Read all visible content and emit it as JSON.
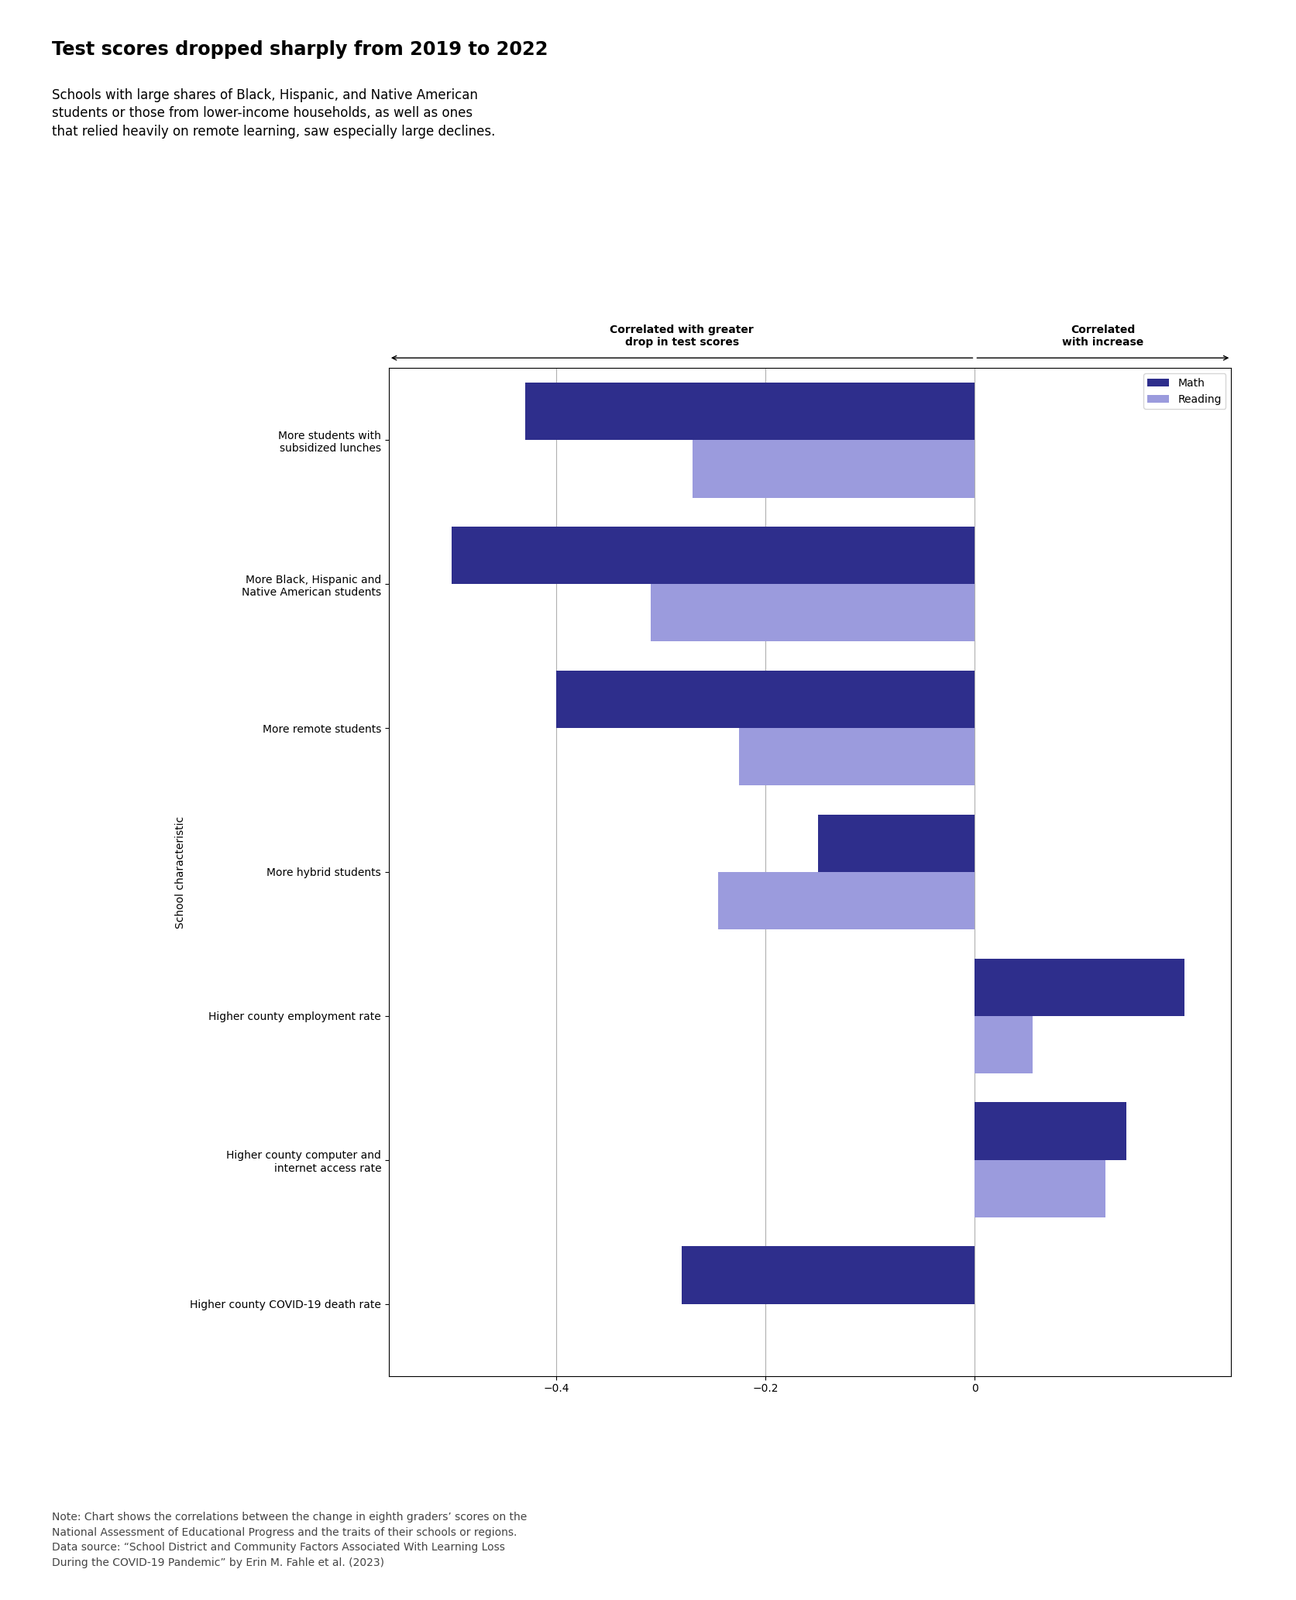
{
  "chart_data": {
    "type": "bar",
    "orientation": "horizontal",
    "title": "Test scores dropped sharply from 2019 to 2022",
    "subtitle": "Schools with large shares of Black, Hispanic, and Native American\nstudents or those from lower-income households, as well as ones\nthat relied heavily on remote learning, saw especially large declines.",
    "ylabel": "School characteristic",
    "categories": [
      "More students with\nsubsidized lunches",
      "More Black, Hispanic and\nNative American students",
      "More remote students",
      "More hybrid students",
      "Higher county employment rate",
      "Higher county computer and\ninternet access rate",
      "Higher county COVID-19 death rate"
    ],
    "series": [
      {
        "name": "Math",
        "color": "#2e2e8c",
        "values": [
          -0.43,
          -0.5,
          -0.4,
          -0.15,
          0.2,
          0.145,
          -0.28
        ]
      },
      {
        "name": "Reading",
        "color": "#9b9bdd",
        "values": [
          -0.27,
          -0.31,
          -0.225,
          -0.245,
          0.055,
          0.125,
          null
        ]
      }
    ],
    "xlim": [
      -0.56,
      0.245
    ],
    "xticks": [
      {
        "value": -0.4,
        "label": "−0.4"
      },
      {
        "value": -0.2,
        "label": "−0.2"
      },
      0
    ],
    "grid": true,
    "legend": "upper right",
    "annotations": [
      "Correlated with greater\ndrop in test scores",
      "Correlated\nwith increase"
    ],
    "note": "Note: Chart shows the correlations between the change in eighth graders’ scores on the\nNational Assessment of Educational Progress and the traits of their schools or regions.\nData source: “School District and Community Factors Associated With Learning Loss\nDuring the COVID-19 Pandemic” by Erin M. Fahle et al. (2023)"
  }
}
